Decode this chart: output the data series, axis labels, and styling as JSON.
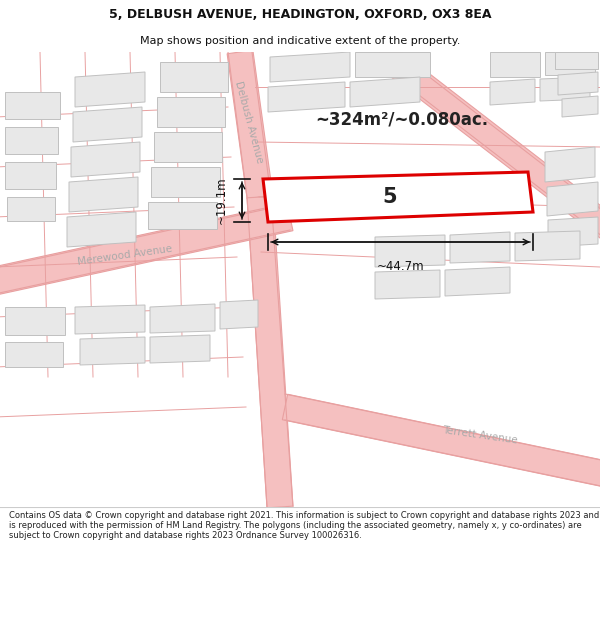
{
  "title_line1": "5, DELBUSH AVENUE, HEADINGTON, OXFORD, OX3 8EA",
  "title_line2": "Map shows position and indicative extent of the property.",
  "area_text": "~324m²/~0.080ac.",
  "width_label": "~44.7m",
  "height_label": "~19.1m",
  "property_number": "5",
  "street_label_merewood": "Merewood Avenue",
  "street_label_terrett": "Terrett Avenue",
  "street_label_delbush": "Delbush Avenue",
  "footer": "Contains OS data © Crown copyright and database right 2021. This information is subject to Crown copyright and database rights 2023 and is reproduced with the permission of HM Land Registry. The polygons (including the associated geometry, namely x, y co-ordinates) are subject to Crown copyright and database rights 2023 Ordnance Survey 100026316.",
  "map_bg": "#ffffff",
  "road_color": "#f5c0c0",
  "road_line_color": "#e8a0a0",
  "building_fill": "#e8e8e8",
  "building_edge": "#c0c0c0",
  "plot_line_color": "#cccccc",
  "property_fill": "#ffffff",
  "property_outline": "#dd0000",
  "dim_color": "#111111",
  "text_dark": "#222222",
  "street_text_color": "#aaaaaa",
  "title_fontsize": 9,
  "subtitle_fontsize": 8,
  "area_fontsize": 12,
  "number_fontsize": 15,
  "dim_fontsize": 8.5,
  "street_fontsize": 7.5,
  "footer_fontsize": 6.0
}
